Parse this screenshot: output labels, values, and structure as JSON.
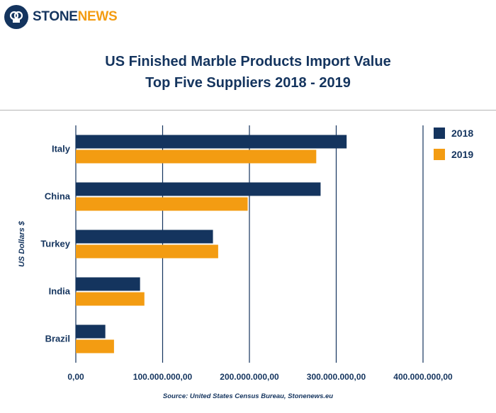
{
  "header": {
    "logo_icon": "stone-news-logo-icon",
    "logo_part1": "STONE",
    "logo_part2": "NEWS"
  },
  "colors": {
    "primary": "#14345e",
    "accent": "#f39c12"
  },
  "chart_data": {
    "type": "bar",
    "orientation": "horizontal",
    "title_line1": "US Finished Marble Products Import Value",
    "title_line2": "Top Five Suppliers 2018 - 2019",
    "ylabel": "US Dollars $",
    "categories": [
      "Italy",
      "China",
      "Turkey",
      "India",
      "Brazil"
    ],
    "series": [
      {
        "name": "2018",
        "color": "#14345e",
        "values": [
          312000000,
          282000000,
          158000000,
          74000000,
          34000000
        ]
      },
      {
        "name": "2019",
        "color": "#f39c12",
        "values": [
          277000000,
          198000000,
          164000000,
          79000000,
          44000000
        ]
      }
    ],
    "xlim": [
      0,
      400000000
    ],
    "xticks": [
      0,
      100000000,
      200000000,
      300000000,
      400000000
    ],
    "xtick_labels": [
      "0,00",
      "100.000.000,00",
      "200.000.000,00",
      "300.000.000,00",
      "400.000.000,00"
    ],
    "grid": "vertical",
    "legend_position": "top-right",
    "source": "Source: United States Census Bureau, Stonenews.eu"
  }
}
